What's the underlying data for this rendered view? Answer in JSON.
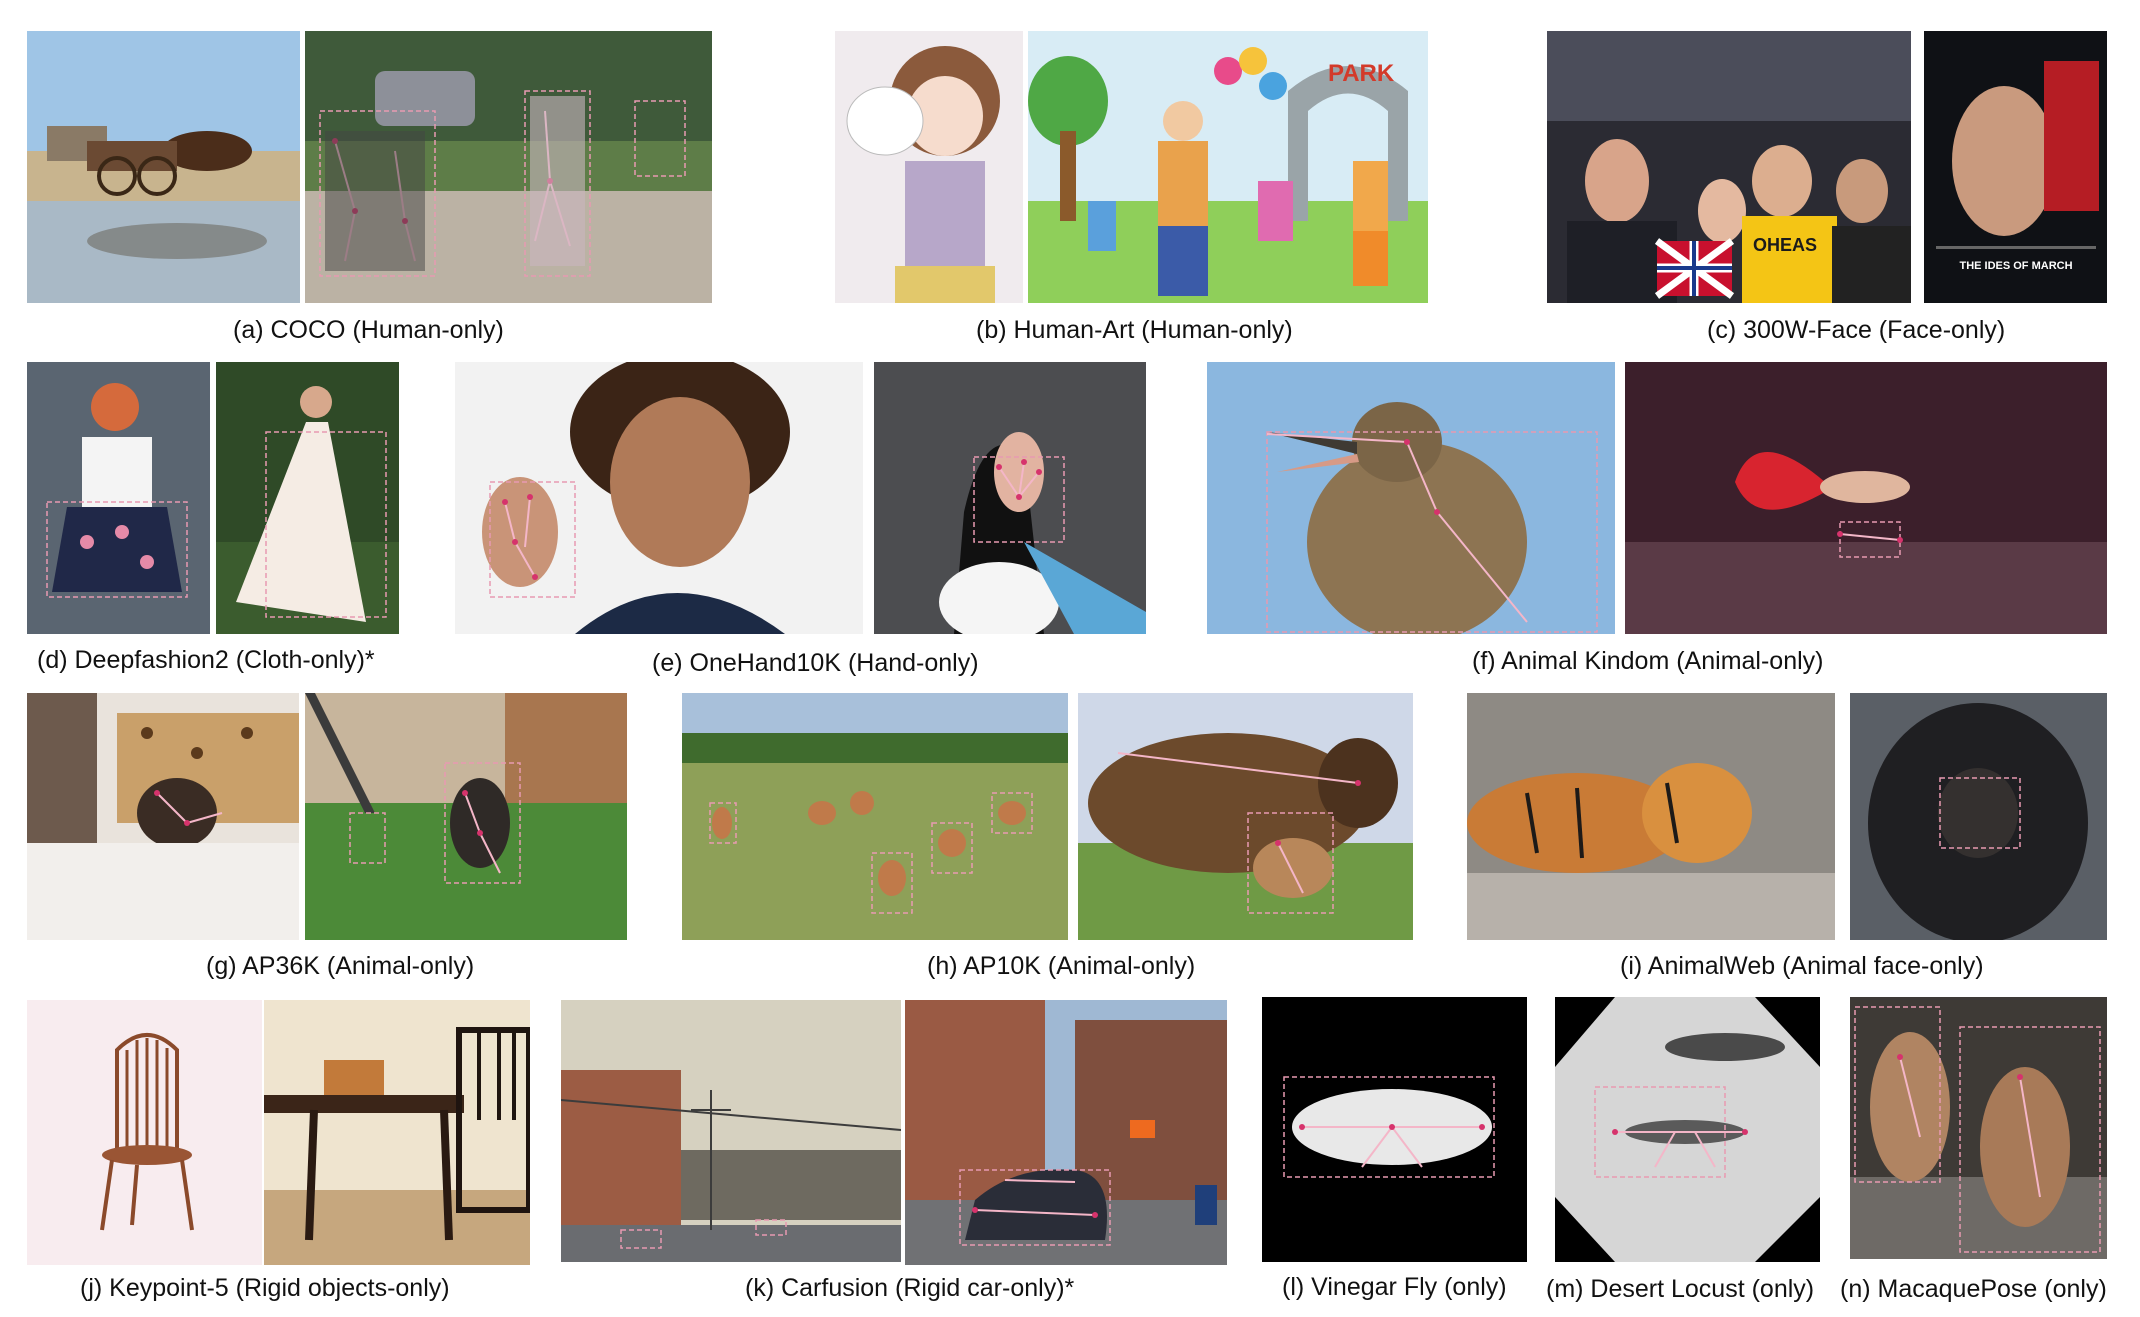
{
  "captions": {
    "a": "(a) COCO (Human-only)",
    "b": "(b) Human-Art (Human-only)",
    "c": "(c) 300W-Face (Face-only)",
    "d": "(d) Deepfashion2 (Cloth-only)*",
    "e": "(e) OneHand10K (Hand-only)",
    "f": "(f) Animal Kindom (Animal-only)",
    "g": "(g) AP36K (Animal-only)",
    "h": "(h) AP10K (Animal-only)",
    "i": "(i) AnimalWeb (Animal face-only)",
    "j": "(j) Keypoint-5 (Rigid objects-only)",
    "k": "(k) Carfusion (Rigid car-only)*",
    "l": "(l) Vinegar Fly (only)",
    "m": "(m) Desert Locust (only)",
    "n": "(n) MacaquePose (only)"
  },
  "image_text": {
    "park_sign": "PARK",
    "movie_title": "THE IDES OF MARCH",
    "shirt_text": "OHEAS"
  }
}
